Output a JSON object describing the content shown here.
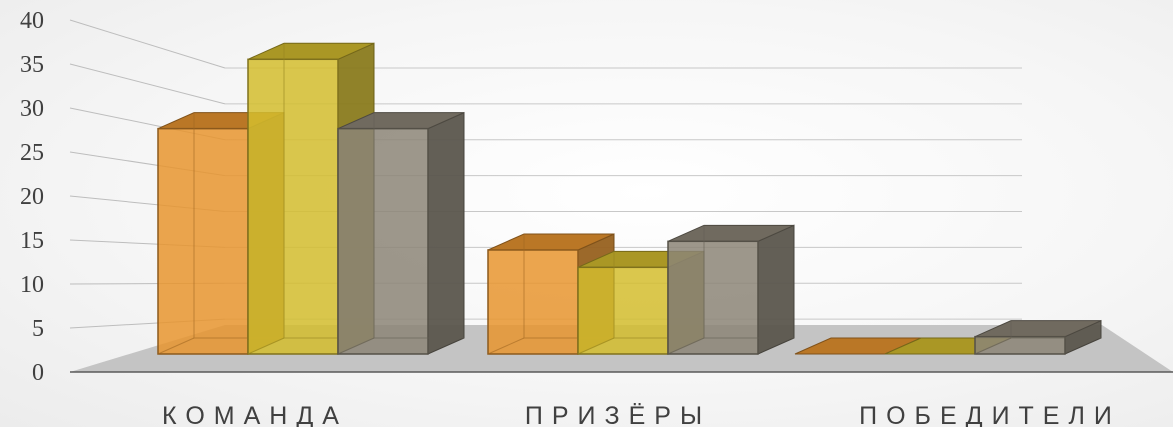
{
  "chart_data": {
    "type": "bar",
    "style": "3d-clustered-column",
    "categories": [
      "КОМАНДА",
      "ПРИЗЁРЫ",
      "ПОБЕДИТЕЛИ"
    ],
    "series": [
      {
        "color": "#e8952f",
        "values": [
          26,
          12,
          0
        ]
      },
      {
        "color": "#d4bd2e",
        "values": [
          34,
          10,
          0
        ]
      },
      {
        "color": "#8c8577",
        "values": [
          26,
          13,
          2
        ]
      }
    ],
    "ylim": [
      0,
      40
    ],
    "yticks": [
      0,
      5,
      10,
      15,
      20,
      25,
      30,
      35,
      40
    ],
    "grid": true,
    "legend": "none",
    "title": "",
    "xlabel": "",
    "ylabel": ""
  }
}
